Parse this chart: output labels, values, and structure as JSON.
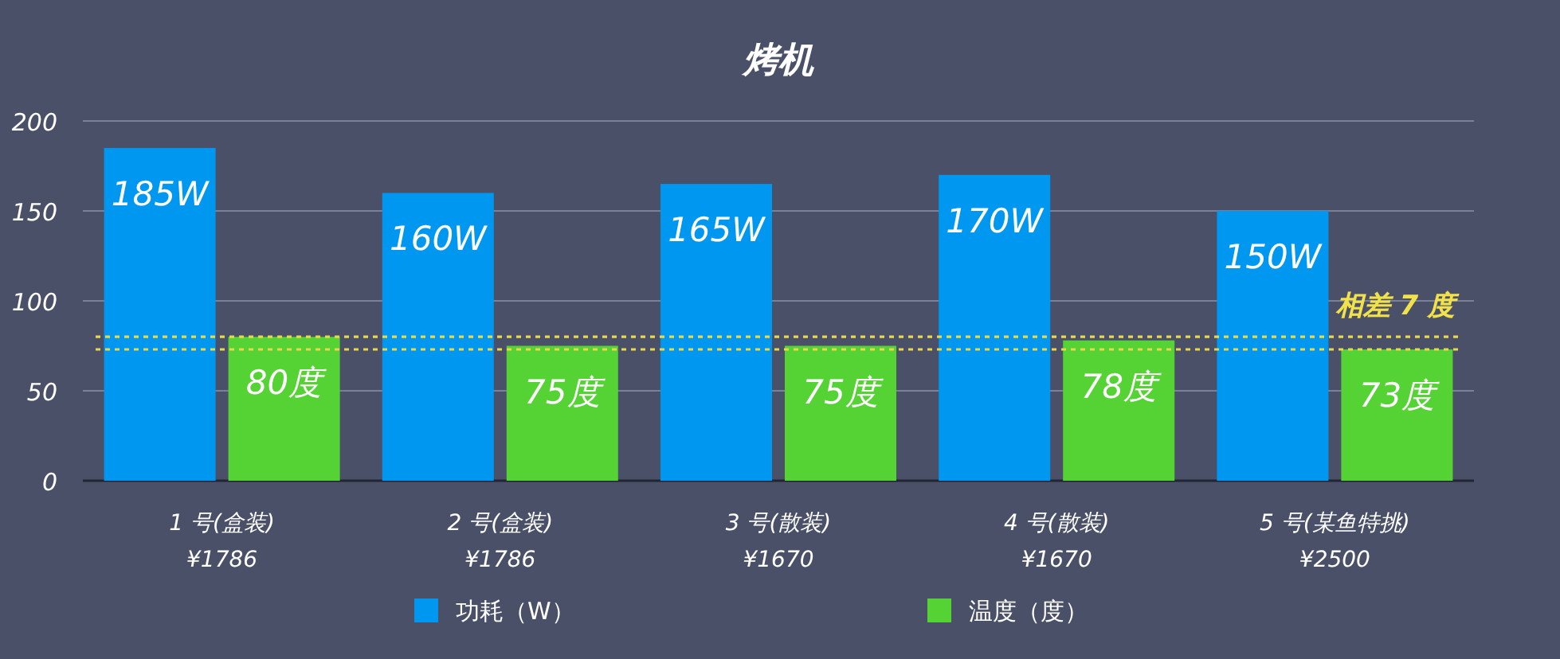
{
  "chart_data": {
    "type": "bar",
    "title": "烤机",
    "categories": [
      "1 号(盒装)\n¥1786",
      "2 号(盒装)\n¥1786",
      "3 号(散装)\n¥1670",
      "4 号(散装)\n¥1670",
      "5 号(某鱼特挑)\n¥2500"
    ],
    "series": [
      {
        "name": "功耗（W）",
        "color": "#0097f0",
        "values": [
          185,
          160,
          165,
          170,
          150
        ],
        "value_labels": [
          "185W",
          "160W",
          "165W",
          "170W",
          "150W"
        ]
      },
      {
        "name": "温度（度）",
        "color": "#55d234",
        "values": [
          80,
          75,
          75,
          78,
          73
        ],
        "value_labels": [
          "80度",
          "75度",
          "75度",
          "78度",
          "73度"
        ]
      }
    ],
    "ylim": [
      0,
      200
    ],
    "yticks": [
      0,
      50,
      100,
      150,
      200
    ],
    "grid": "y",
    "legend": "bottom",
    "ref_lines": [
      {
        "axis": "y",
        "value": 80,
        "color": "#e8d84a",
        "line_style": "dotted"
      },
      {
        "axis": "y",
        "value": 73,
        "color": "#e8d84a",
        "line_style": "dotted"
      }
    ],
    "annotations": [
      "相差 7 度"
    ]
  }
}
